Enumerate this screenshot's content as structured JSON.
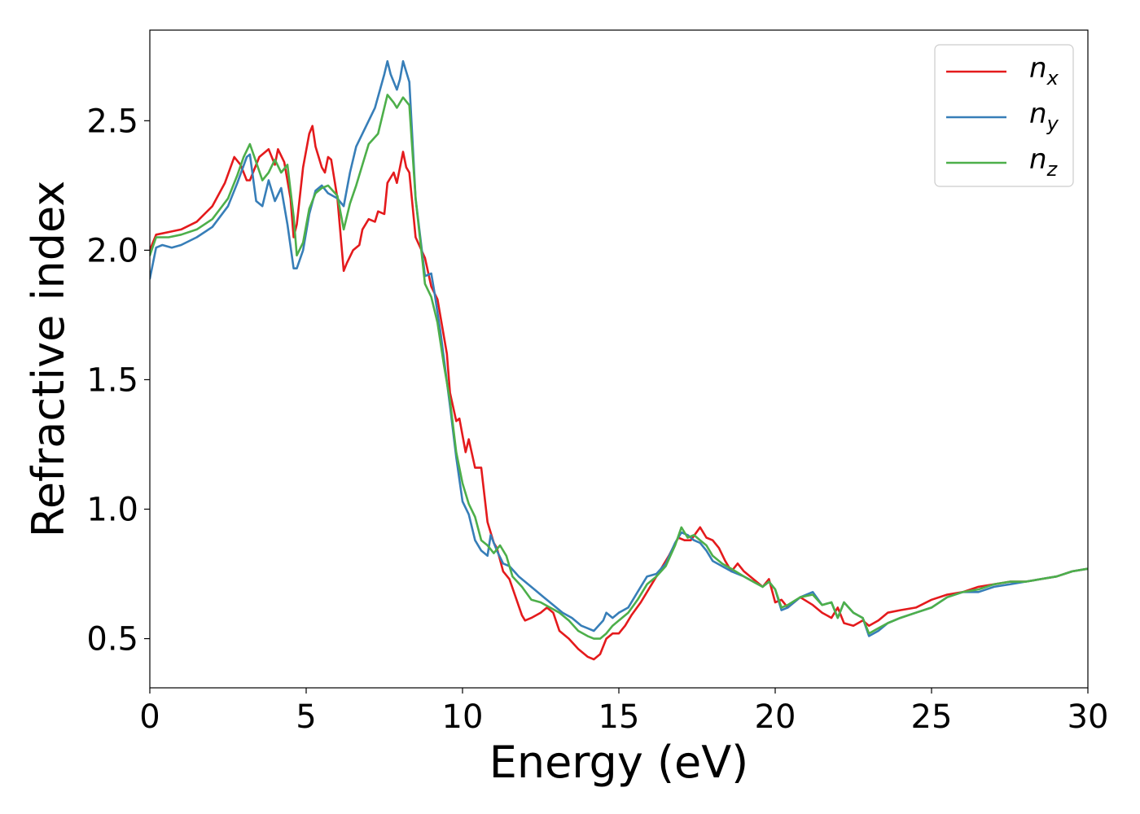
{
  "chart_data": {
    "type": "line",
    "title": "",
    "xlabel": "Energy (eV)",
    "ylabel": "Refractive index",
    "xlim": [
      0,
      30
    ],
    "ylim": [
      0.31,
      2.85
    ],
    "xticks": [
      "0",
      "5",
      "10",
      "15",
      "20",
      "25",
      "30"
    ],
    "yticks": [
      "0.5",
      "1.0",
      "1.5",
      "2.0",
      "2.5"
    ],
    "grid": false,
    "legend_position": "top-right",
    "series": [
      {
        "name": "n_x",
        "legend_base": "n",
        "legend_sub": "x",
        "color": "#e41a1c",
        "x": [
          0,
          0.2,
          0.6,
          1,
          1.5,
          2,
          2.4,
          2.7,
          2.9,
          3.1,
          3.2,
          3.5,
          3.8,
          4,
          4.1,
          4.3,
          4.5,
          4.6,
          4.7,
          4.9,
          5.1,
          5.2,
          5.3,
          5.5,
          5.6,
          5.7,
          5.8,
          6,
          6.2,
          6.3,
          6.5,
          6.7,
          6.8,
          7,
          7.2,
          7.3,
          7.5,
          7.6,
          7.8,
          7.9,
          8.1,
          8.2,
          8.3,
          8.5,
          8.8,
          9,
          9.2,
          9.5,
          9.6,
          9.8,
          9.9,
          10.1,
          10.2,
          10.4,
          10.6,
          10.8,
          11,
          11.1,
          11.3,
          11.5,
          11.7,
          11.9,
          12,
          12.2,
          12.5,
          12.7,
          12.9,
          13.1,
          13.4,
          13.7,
          14,
          14.2,
          14.4,
          14.6,
          14.8,
          15,
          15.2,
          15.4,
          15.7,
          16,
          16.3,
          16.6,
          16.9,
          17.1,
          17.3,
          17.6,
          17.8,
          18,
          18.2,
          18.4,
          18.6,
          18.8,
          19,
          19.3,
          19.6,
          19.8,
          20,
          20.2,
          20.4,
          20.8,
          21.2,
          21.5,
          21.8,
          22,
          22.2,
          22.5,
          22.8,
          23,
          23.3,
          23.6,
          24,
          24.5,
          25,
          25.5,
          26,
          26.5,
          27,
          27.5,
          28,
          28.5,
          29,
          29.5,
          30
        ],
        "y": [
          2.0,
          2.06,
          2.07,
          2.08,
          2.11,
          2.17,
          2.26,
          2.36,
          2.33,
          2.27,
          2.27,
          2.36,
          2.39,
          2.33,
          2.39,
          2.34,
          2.2,
          2.05,
          2.1,
          2.32,
          2.45,
          2.48,
          2.4,
          2.32,
          2.3,
          2.36,
          2.35,
          2.2,
          1.92,
          1.95,
          2.0,
          2.02,
          2.08,
          2.12,
          2.11,
          2.15,
          2.14,
          2.26,
          2.3,
          2.26,
          2.38,
          2.32,
          2.3,
          2.05,
          1.97,
          1.86,
          1.81,
          1.6,
          1.45,
          1.34,
          1.35,
          1.22,
          1.27,
          1.16,
          1.16,
          0.95,
          0.87,
          0.85,
          0.76,
          0.73,
          0.66,
          0.59,
          0.57,
          0.58,
          0.6,
          0.62,
          0.6,
          0.53,
          0.5,
          0.46,
          0.43,
          0.42,
          0.44,
          0.5,
          0.52,
          0.52,
          0.55,
          0.59,
          0.64,
          0.7,
          0.76,
          0.82,
          0.89,
          0.88,
          0.88,
          0.93,
          0.89,
          0.88,
          0.85,
          0.8,
          0.76,
          0.79,
          0.76,
          0.73,
          0.7,
          0.73,
          0.64,
          0.65,
          0.62,
          0.66,
          0.63,
          0.6,
          0.58,
          0.62,
          0.56,
          0.55,
          0.57,
          0.55,
          0.57,
          0.6,
          0.61,
          0.62,
          0.65,
          0.67,
          0.68,
          0.7,
          0.71,
          0.72,
          0.72,
          0.73,
          0.74,
          0.76,
          0.77
        ]
      },
      {
        "name": "n_y",
        "legend_base": "n",
        "legend_sub": "y",
        "color": "#377eb8",
        "x": [
          0,
          0.2,
          0.4,
          0.7,
          1,
          1.5,
          2,
          2.5,
          2.8,
          3.1,
          3.2,
          3.4,
          3.6,
          3.8,
          4,
          4.2,
          4.4,
          4.6,
          4.7,
          4.9,
          5.1,
          5.3,
          5.5,
          5.7,
          6,
          6.2,
          6.4,
          6.6,
          6.8,
          7,
          7.2,
          7.5,
          7.6,
          7.7,
          7.9,
          8,
          8.1,
          8.3,
          8.5,
          8.8,
          9,
          9.1,
          9.3,
          9.6,
          9.8,
          10,
          10.2,
          10.4,
          10.6,
          10.8,
          10.9,
          11.1,
          11.3,
          11.5,
          11.8,
          12,
          12.3,
          12.6,
          12.9,
          13.2,
          13.5,
          13.8,
          14,
          14.2,
          14.5,
          14.6,
          14.8,
          15,
          15.3,
          15.6,
          15.9,
          16.2,
          16.5,
          16.8,
          17,
          17.2,
          17.4,
          17.6,
          17.8,
          18,
          18.3,
          18.6,
          19,
          19.3,
          19.6,
          19.8,
          20,
          20.2,
          20.4,
          20.8,
          21.2,
          21.5,
          21.8,
          22,
          22.2,
          22.5,
          22.8,
          23,
          23.3,
          23.6,
          24,
          24.5,
          25,
          25.5,
          26,
          26.5,
          27,
          27.5,
          28,
          28.5,
          29,
          29.5,
          30
        ],
        "y": [
          1.89,
          2.01,
          2.02,
          2.01,
          2.02,
          2.05,
          2.09,
          2.17,
          2.26,
          2.36,
          2.37,
          2.19,
          2.17,
          2.27,
          2.19,
          2.24,
          2.1,
          1.93,
          1.93,
          2.0,
          2.14,
          2.23,
          2.25,
          2.22,
          2.2,
          2.17,
          2.3,
          2.4,
          2.45,
          2.5,
          2.55,
          2.68,
          2.73,
          2.68,
          2.62,
          2.66,
          2.73,
          2.65,
          2.2,
          1.9,
          1.91,
          1.84,
          1.68,
          1.4,
          1.2,
          1.03,
          0.98,
          0.88,
          0.84,
          0.82,
          0.9,
          0.84,
          0.79,
          0.78,
          0.74,
          0.72,
          0.69,
          0.66,
          0.63,
          0.6,
          0.58,
          0.55,
          0.54,
          0.53,
          0.57,
          0.6,
          0.58,
          0.6,
          0.62,
          0.68,
          0.74,
          0.75,
          0.79,
          0.87,
          0.91,
          0.9,
          0.88,
          0.87,
          0.84,
          0.8,
          0.78,
          0.76,
          0.74,
          0.72,
          0.7,
          0.72,
          0.69,
          0.61,
          0.62,
          0.66,
          0.68,
          0.63,
          0.64,
          0.58,
          0.64,
          0.6,
          0.58,
          0.51,
          0.53,
          0.56,
          0.58,
          0.6,
          0.62,
          0.66,
          0.68,
          0.68,
          0.7,
          0.71,
          0.72,
          0.73,
          0.74,
          0.76,
          0.77
        ]
      },
      {
        "name": "n_z",
        "legend_base": "n",
        "legend_sub": "z",
        "color": "#4daf4a",
        "x": [
          0,
          0.2,
          0.6,
          1,
          1.5,
          2,
          2.5,
          2.8,
          3,
          3.2,
          3.4,
          3.6,
          3.8,
          4,
          4.2,
          4.4,
          4.6,
          4.7,
          4.9,
          5.1,
          5.3,
          5.5,
          5.7,
          6,
          6.2,
          6.4,
          6.6,
          6.8,
          7,
          7.3,
          7.6,
          7.8,
          7.9,
          8.1,
          8.3,
          8.5,
          8.8,
          9,
          9.2,
          9.4,
          9.6,
          9.8,
          10,
          10.2,
          10.4,
          10.6,
          10.8,
          11,
          11.2,
          11.4,
          11.6,
          11.9,
          12.2,
          12.5,
          12.8,
          13.1,
          13.4,
          13.7,
          14,
          14.2,
          14.4,
          14.6,
          14.8,
          15,
          15.3,
          15.6,
          15.9,
          16.2,
          16.5,
          16.8,
          17,
          17.2,
          17.4,
          17.6,
          17.8,
          18,
          18.3,
          18.6,
          19,
          19.3,
          19.6,
          19.8,
          20,
          20.2,
          20.4,
          20.8,
          21.2,
          21.5,
          21.8,
          22,
          22.2,
          22.5,
          22.8,
          23,
          23.3,
          23.6,
          24,
          24.5,
          25,
          25.5,
          26,
          26.5,
          27,
          27.5,
          28,
          28.5,
          29,
          29.5,
          30
        ],
        "y": [
          1.98,
          2.05,
          2.05,
          2.06,
          2.08,
          2.12,
          2.2,
          2.29,
          2.36,
          2.41,
          2.34,
          2.27,
          2.3,
          2.35,
          2.3,
          2.33,
          2.13,
          1.98,
          2.03,
          2.16,
          2.22,
          2.24,
          2.25,
          2.21,
          2.08,
          2.18,
          2.25,
          2.33,
          2.41,
          2.45,
          2.6,
          2.57,
          2.55,
          2.59,
          2.56,
          2.2,
          1.87,
          1.82,
          1.72,
          1.56,
          1.42,
          1.22,
          1.1,
          1.02,
          0.97,
          0.88,
          0.86,
          0.83,
          0.86,
          0.82,
          0.74,
          0.7,
          0.65,
          0.64,
          0.62,
          0.6,
          0.57,
          0.53,
          0.51,
          0.5,
          0.5,
          0.52,
          0.55,
          0.57,
          0.6,
          0.65,
          0.71,
          0.74,
          0.78,
          0.86,
          0.93,
          0.89,
          0.9,
          0.88,
          0.86,
          0.82,
          0.79,
          0.77,
          0.74,
          0.72,
          0.7,
          0.72,
          0.69,
          0.62,
          0.63,
          0.66,
          0.67,
          0.63,
          0.64,
          0.58,
          0.64,
          0.6,
          0.58,
          0.52,
          0.54,
          0.56,
          0.58,
          0.6,
          0.62,
          0.66,
          0.68,
          0.69,
          0.71,
          0.72,
          0.72,
          0.73,
          0.74,
          0.76,
          0.77
        ]
      }
    ]
  }
}
